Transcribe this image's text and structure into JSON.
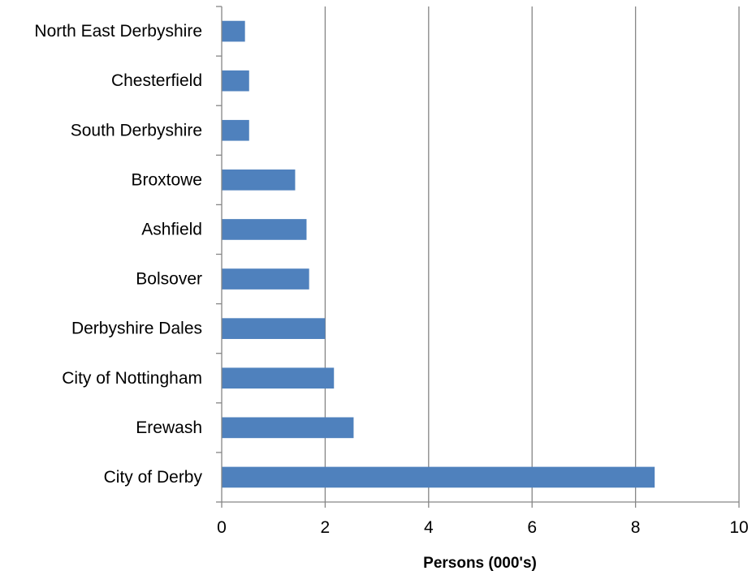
{
  "chart_data": {
    "type": "bar",
    "orientation": "horizontal",
    "title": "",
    "xlabel": "Persons (000's)",
    "ylabel": "",
    "xlim": [
      0,
      10
    ],
    "x_ticks": [
      "0",
      "2",
      "4",
      "6",
      "8",
      "10"
    ],
    "x_tick_values": [
      0,
      2,
      4,
      6,
      8,
      10
    ],
    "grid": "vertical-major",
    "legend": "none",
    "categories": [
      "North East Derbyshire",
      "Chesterfield",
      "South Derbyshire",
      "Broxtowe",
      "Ashfield",
      "Bolsover",
      "Derbyshire Dales",
      "City of Nottingham",
      "Erewash",
      "City of Derby"
    ],
    "values": [
      0.45,
      0.53,
      0.53,
      1.42,
      1.64,
      1.69,
      2.0,
      2.17,
      2.55,
      8.37
    ],
    "colors": {
      "bar": "#4f81bd",
      "grid": "#868686",
      "axis": "#868686"
    }
  }
}
